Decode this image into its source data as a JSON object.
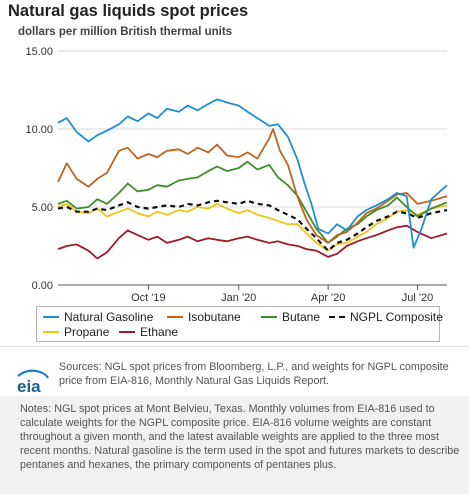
{
  "title": "Natural gas liquids spot prices",
  "subtitle": "dollars per million British thermal units",
  "chart_data": {
    "type": "line",
    "ylim": [
      0,
      15
    ],
    "y_ticks": [
      "0.00",
      "5.00",
      "10.00",
      "15.00"
    ],
    "x_range": [
      "2019-07-01",
      "2020-07-31"
    ],
    "x_ticks": [
      {
        "date": "2019-10-01",
        "label": "Oct '19"
      },
      {
        "date": "2020-01-01",
        "label": "Jan '20"
      },
      {
        "date": "2020-04-01",
        "label": "Apr '20"
      },
      {
        "date": "2020-07-01",
        "label": "Jul '20"
      }
    ],
    "grid": "horizontal",
    "legend_position": "bottom",
    "series": [
      {
        "name": "Natural Gasoline",
        "color": "#1f8fd1",
        "dashed": false,
        "points": [
          [
            "2019-07-01",
            10.4
          ],
          [
            "2019-07-10",
            10.7
          ],
          [
            "2019-07-20",
            9.8
          ],
          [
            "2019-08-01",
            9.2
          ],
          [
            "2019-08-10",
            9.6
          ],
          [
            "2019-08-20",
            9.9
          ],
          [
            "2019-09-01",
            10.3
          ],
          [
            "2019-09-10",
            10.8
          ],
          [
            "2019-09-20",
            10.5
          ],
          [
            "2019-10-01",
            11.0
          ],
          [
            "2019-10-10",
            10.7
          ],
          [
            "2019-10-20",
            11.3
          ],
          [
            "2019-11-01",
            11.1
          ],
          [
            "2019-11-10",
            11.5
          ],
          [
            "2019-11-20",
            11.2
          ],
          [
            "2019-12-01",
            11.6
          ],
          [
            "2019-12-10",
            11.9
          ],
          [
            "2019-12-20",
            11.7
          ],
          [
            "2020-01-01",
            11.5
          ],
          [
            "2020-01-10",
            11.1
          ],
          [
            "2020-01-20",
            10.7
          ],
          [
            "2020-02-01",
            10.2
          ],
          [
            "2020-02-10",
            10.3
          ],
          [
            "2020-02-20",
            9.5
          ],
          [
            "2020-03-01",
            8.0
          ],
          [
            "2020-03-08",
            6.5
          ],
          [
            "2020-03-15",
            5.2
          ],
          [
            "2020-03-22",
            3.6
          ],
          [
            "2020-04-01",
            3.3
          ],
          [
            "2020-04-10",
            3.9
          ],
          [
            "2020-04-20",
            3.5
          ],
          [
            "2020-05-01",
            4.4
          ],
          [
            "2020-05-10",
            4.8
          ],
          [
            "2020-05-20",
            5.1
          ],
          [
            "2020-06-01",
            5.5
          ],
          [
            "2020-06-10",
            5.9
          ],
          [
            "2020-06-20",
            5.7
          ],
          [
            "2020-06-27",
            2.4
          ],
          [
            "2020-07-05",
            3.6
          ],
          [
            "2020-07-15",
            5.5
          ],
          [
            "2020-07-31",
            6.4
          ]
        ]
      },
      {
        "name": "Isobutane",
        "color": "#c0651d",
        "dashed": false,
        "points": [
          [
            "2019-07-01",
            6.6
          ],
          [
            "2019-07-10",
            7.8
          ],
          [
            "2019-07-20",
            6.8
          ],
          [
            "2019-08-01",
            6.3
          ],
          [
            "2019-08-10",
            6.8
          ],
          [
            "2019-08-20",
            7.2
          ],
          [
            "2019-09-01",
            8.6
          ],
          [
            "2019-09-10",
            8.8
          ],
          [
            "2019-09-20",
            8.1
          ],
          [
            "2019-10-01",
            8.4
          ],
          [
            "2019-10-10",
            8.2
          ],
          [
            "2019-10-20",
            8.6
          ],
          [
            "2019-11-01",
            8.7
          ],
          [
            "2019-11-10",
            8.4
          ],
          [
            "2019-11-20",
            8.8
          ],
          [
            "2019-12-01",
            8.5
          ],
          [
            "2019-12-10",
            9.0
          ],
          [
            "2019-12-20",
            8.3
          ],
          [
            "2020-01-01",
            8.2
          ],
          [
            "2020-01-10",
            8.5
          ],
          [
            "2020-01-20",
            8.1
          ],
          [
            "2020-02-01",
            9.4
          ],
          [
            "2020-02-05",
            10.0
          ],
          [
            "2020-02-12",
            8.6
          ],
          [
            "2020-02-20",
            7.7
          ],
          [
            "2020-03-01",
            5.6
          ],
          [
            "2020-03-10",
            4.2
          ],
          [
            "2020-03-20",
            3.2
          ],
          [
            "2020-04-01",
            2.7
          ],
          [
            "2020-04-10",
            3.2
          ],
          [
            "2020-04-20",
            3.4
          ],
          [
            "2020-05-01",
            4.0
          ],
          [
            "2020-05-10",
            4.6
          ],
          [
            "2020-05-20",
            4.9
          ],
          [
            "2020-06-01",
            5.4
          ],
          [
            "2020-06-10",
            5.8
          ],
          [
            "2020-06-20",
            5.9
          ],
          [
            "2020-07-01",
            5.2
          ],
          [
            "2020-07-15",
            5.4
          ],
          [
            "2020-07-31",
            5.7
          ]
        ]
      },
      {
        "name": "Butane",
        "color": "#3f8d27",
        "dashed": false,
        "points": [
          [
            "2019-07-01",
            5.2
          ],
          [
            "2019-07-10",
            5.4
          ],
          [
            "2019-07-20",
            4.9
          ],
          [
            "2019-08-01",
            5.0
          ],
          [
            "2019-08-10",
            5.5
          ],
          [
            "2019-08-20",
            5.2
          ],
          [
            "2019-09-01",
            5.9
          ],
          [
            "2019-09-10",
            6.5
          ],
          [
            "2019-09-20",
            6.0
          ],
          [
            "2019-10-01",
            6.1
          ],
          [
            "2019-10-10",
            6.4
          ],
          [
            "2019-10-20",
            6.3
          ],
          [
            "2019-11-01",
            6.7
          ],
          [
            "2019-11-10",
            6.8
          ],
          [
            "2019-11-20",
            6.9
          ],
          [
            "2019-12-01",
            7.3
          ],
          [
            "2019-12-10",
            7.6
          ],
          [
            "2019-12-20",
            7.3
          ],
          [
            "2020-01-01",
            7.5
          ],
          [
            "2020-01-10",
            7.9
          ],
          [
            "2020-01-20",
            7.4
          ],
          [
            "2020-02-01",
            7.7
          ],
          [
            "2020-02-10",
            6.9
          ],
          [
            "2020-02-20",
            6.4
          ],
          [
            "2020-03-01",
            5.7
          ],
          [
            "2020-03-10",
            4.7
          ],
          [
            "2020-03-20",
            3.6
          ],
          [
            "2020-04-01",
            2.7
          ],
          [
            "2020-04-10",
            3.1
          ],
          [
            "2020-04-20",
            3.6
          ],
          [
            "2020-05-01",
            3.9
          ],
          [
            "2020-05-10",
            4.4
          ],
          [
            "2020-05-20",
            4.8
          ],
          [
            "2020-06-01",
            5.1
          ],
          [
            "2020-06-10",
            5.6
          ],
          [
            "2020-06-20",
            5.0
          ],
          [
            "2020-07-01",
            4.4
          ],
          [
            "2020-07-15",
            4.9
          ],
          [
            "2020-07-31",
            5.3
          ]
        ]
      },
      {
        "name": "NGPL Composite",
        "color": "#111111",
        "dashed": true,
        "points": [
          [
            "2019-07-01",
            4.9
          ],
          [
            "2019-07-10",
            5.0
          ],
          [
            "2019-07-20",
            4.7
          ],
          [
            "2019-08-01",
            4.7
          ],
          [
            "2019-08-10",
            4.9
          ],
          [
            "2019-08-20",
            4.8
          ],
          [
            "2019-09-01",
            5.1
          ],
          [
            "2019-09-10",
            5.3
          ],
          [
            "2019-09-20",
            5.0
          ],
          [
            "2019-10-01",
            4.9
          ],
          [
            "2019-10-10",
            5.0
          ],
          [
            "2019-10-20",
            5.1
          ],
          [
            "2019-11-01",
            5.0
          ],
          [
            "2019-11-10",
            5.2
          ],
          [
            "2019-11-20",
            5.1
          ],
          [
            "2019-12-01",
            5.3
          ],
          [
            "2019-12-10",
            5.4
          ],
          [
            "2019-12-20",
            5.3
          ],
          [
            "2020-01-01",
            5.2
          ],
          [
            "2020-01-10",
            5.4
          ],
          [
            "2020-01-20",
            5.2
          ],
          [
            "2020-02-01",
            5.1
          ],
          [
            "2020-02-10",
            4.8
          ],
          [
            "2020-02-20",
            4.5
          ],
          [
            "2020-03-01",
            4.2
          ],
          [
            "2020-03-10",
            3.6
          ],
          [
            "2020-03-20",
            3.0
          ],
          [
            "2020-04-01",
            2.2
          ],
          [
            "2020-04-10",
            2.7
          ],
          [
            "2020-04-20",
            2.9
          ],
          [
            "2020-05-01",
            3.3
          ],
          [
            "2020-05-10",
            3.7
          ],
          [
            "2020-05-20",
            4.1
          ],
          [
            "2020-06-01",
            4.4
          ],
          [
            "2020-06-10",
            4.7
          ],
          [
            "2020-06-20",
            4.6
          ],
          [
            "2020-07-01",
            4.3
          ],
          [
            "2020-07-15",
            4.6
          ],
          [
            "2020-07-31",
            4.8
          ]
        ]
      },
      {
        "name": "Propane",
        "color": "#f2c318",
        "dashed": false,
        "points": [
          [
            "2019-07-01",
            5.0
          ],
          [
            "2019-07-10",
            5.2
          ],
          [
            "2019-07-20",
            4.7
          ],
          [
            "2019-08-01",
            4.6
          ],
          [
            "2019-08-10",
            4.9
          ],
          [
            "2019-08-20",
            4.4
          ],
          [
            "2019-09-01",
            4.7
          ],
          [
            "2019-09-10",
            4.9
          ],
          [
            "2019-09-20",
            4.6
          ],
          [
            "2019-10-01",
            4.4
          ],
          [
            "2019-10-10",
            4.7
          ],
          [
            "2019-10-20",
            4.5
          ],
          [
            "2019-11-01",
            4.8
          ],
          [
            "2019-11-10",
            4.7
          ],
          [
            "2019-11-20",
            5.0
          ],
          [
            "2019-12-01",
            4.9
          ],
          [
            "2019-12-10",
            5.2
          ],
          [
            "2019-12-20",
            4.9
          ],
          [
            "2020-01-01",
            4.6
          ],
          [
            "2020-01-10",
            4.8
          ],
          [
            "2020-01-20",
            4.5
          ],
          [
            "2020-02-01",
            4.3
          ],
          [
            "2020-02-10",
            4.1
          ],
          [
            "2020-02-20",
            3.9
          ],
          [
            "2020-03-01",
            3.9
          ],
          [
            "2020-03-10",
            3.3
          ],
          [
            "2020-03-20",
            2.7
          ],
          [
            "2020-04-01",
            2.2
          ],
          [
            "2020-04-10",
            2.6
          ],
          [
            "2020-04-20",
            2.7
          ],
          [
            "2020-05-01",
            3.1
          ],
          [
            "2020-05-10",
            3.4
          ],
          [
            "2020-05-20",
            3.9
          ],
          [
            "2020-06-01",
            4.3
          ],
          [
            "2020-06-10",
            4.7
          ],
          [
            "2020-06-20",
            4.8
          ],
          [
            "2020-07-01",
            4.5
          ],
          [
            "2020-07-15",
            4.9
          ],
          [
            "2020-07-31",
            5.1
          ]
        ]
      },
      {
        "name": "Ethane",
        "color": "#9b1c2b",
        "dashed": false,
        "points": [
          [
            "2019-07-01",
            2.3
          ],
          [
            "2019-07-10",
            2.5
          ],
          [
            "2019-07-20",
            2.6
          ],
          [
            "2019-08-01",
            2.2
          ],
          [
            "2019-08-10",
            1.7
          ],
          [
            "2019-08-20",
            2.1
          ],
          [
            "2019-09-01",
            3.0
          ],
          [
            "2019-09-10",
            3.5
          ],
          [
            "2019-09-20",
            3.2
          ],
          [
            "2019-10-01",
            2.9
          ],
          [
            "2019-10-10",
            3.1
          ],
          [
            "2019-10-20",
            2.7
          ],
          [
            "2019-11-01",
            2.9
          ],
          [
            "2019-11-10",
            3.1
          ],
          [
            "2019-11-20",
            2.8
          ],
          [
            "2019-12-01",
            3.0
          ],
          [
            "2019-12-10",
            2.9
          ],
          [
            "2019-12-20",
            2.8
          ],
          [
            "2020-01-01",
            3.0
          ],
          [
            "2020-01-10",
            3.1
          ],
          [
            "2020-01-20",
            2.9
          ],
          [
            "2020-02-01",
            2.7
          ],
          [
            "2020-02-10",
            2.8
          ],
          [
            "2020-02-20",
            2.6
          ],
          [
            "2020-03-01",
            2.5
          ],
          [
            "2020-03-10",
            2.3
          ],
          [
            "2020-03-20",
            2.2
          ],
          [
            "2020-04-01",
            1.8
          ],
          [
            "2020-04-10",
            2.0
          ],
          [
            "2020-04-20",
            2.5
          ],
          [
            "2020-05-01",
            2.8
          ],
          [
            "2020-05-10",
            3.0
          ],
          [
            "2020-05-20",
            3.2
          ],
          [
            "2020-06-01",
            3.5
          ],
          [
            "2020-06-10",
            3.7
          ],
          [
            "2020-06-20",
            3.8
          ],
          [
            "2020-07-01",
            3.4
          ],
          [
            "2020-07-15",
            3.0
          ],
          [
            "2020-07-31",
            3.3
          ]
        ]
      }
    ]
  },
  "legend_layout": [
    {
      "series": 0
    },
    {
      "series": 1
    },
    {
      "series": 2
    },
    {
      "series": 3
    },
    {
      "series": 4
    },
    {
      "series": 5
    }
  ],
  "footer": {
    "logo_text": "eia",
    "sources": "Sources: NGL spot prices from Bloomberg, L.P., and weights for NGPL composite price from EIA-816, Monthly Natural Gas Liquids Report.",
    "notes": "Notes: NGL spot prices at Mont Belvieu, Texas. Monthly volumes from EIA-816 used to calculate weights for the NGPL composite price. EIA-816 volume weights are constant throughout a given month, and the latest available weights are applied to the three most recent months. Natural gasoline is the term used in the spot and futures markets to describe pentanes and hexanes, the primary components of pentanes plus."
  }
}
